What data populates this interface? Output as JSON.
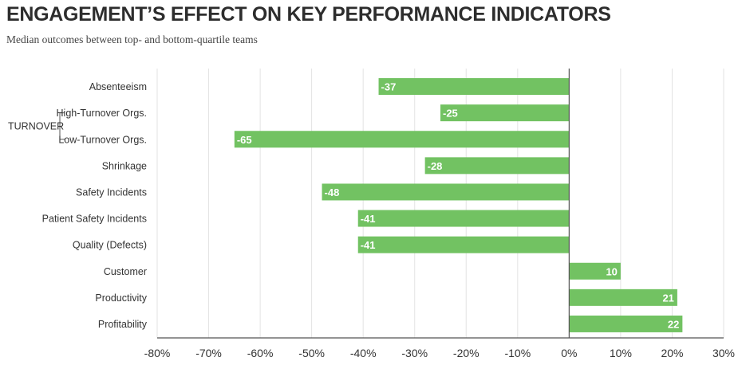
{
  "title": "ENGAGEMENT’S EFFECT ON KEY PERFORMANCE INDICATORS",
  "subtitle": "Median outcomes between top- and bottom-quartile teams",
  "chart_data": {
    "type": "bar",
    "orientation": "horizontal",
    "categories": [
      "Absenteeism",
      "High-Turnover Orgs.",
      "Low-Turnover Orgs.",
      "Shrinkage",
      "Safety Incidents",
      "Patient Safety Incidents",
      "Quality (Defects)",
      "Customer",
      "Productivity",
      "Profitability"
    ],
    "values": [
      -37,
      -25,
      -65,
      -28,
      -48,
      -41,
      -41,
      10,
      21,
      22
    ],
    "group": {
      "label": "TURNOVER",
      "members": [
        "High-Turnover Orgs.",
        "Low-Turnover Orgs."
      ]
    },
    "xlim": [
      -80,
      30
    ],
    "xticks": [
      -80,
      -70,
      -60,
      -50,
      -40,
      -30,
      -20,
      -10,
      0,
      10,
      20,
      30
    ],
    "xtick_labels": [
      "-80%",
      "-70%",
      "-60%",
      "-50%",
      "-40%",
      "-30%",
      "-20%",
      "-10%",
      "0%",
      "10%",
      "20%",
      "30%"
    ],
    "bar_color": "#72c262",
    "grid": true,
    "data_labels": true
  }
}
